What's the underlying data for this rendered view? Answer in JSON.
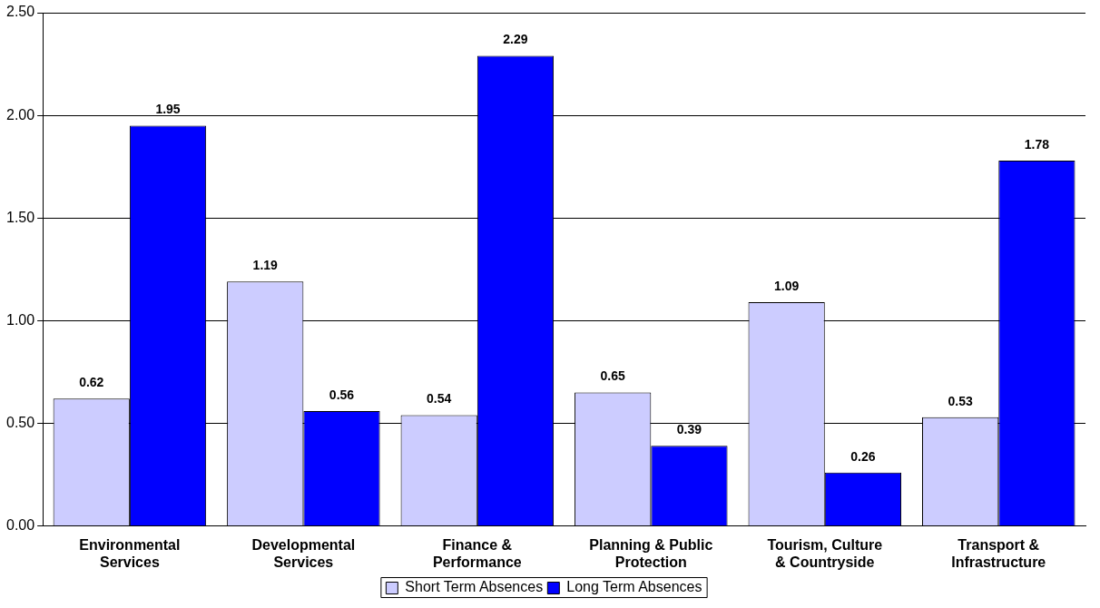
{
  "chart_data": {
    "type": "bar",
    "categories": [
      "Environmental Services",
      "Developmental Services",
      "Finance & Performance",
      "Planning & Public Protection",
      "Tourism, Culture & Countryside",
      "Transport & Infrastructure"
    ],
    "series": [
      {
        "name": "Short Term Absences",
        "color": "#ccccff",
        "values": [
          0.62,
          1.19,
          0.54,
          0.65,
          1.09,
          0.53
        ]
      },
      {
        "name": "Long Term Absences",
        "color": "#0000ff",
        "values": [
          1.95,
          0.56,
          2.29,
          0.39,
          0.26,
          1.78
        ]
      }
    ],
    "ylim": [
      0,
      2.5
    ],
    "yticks": [
      {
        "value": 0,
        "label": "0.00"
      },
      {
        "value": 0.5,
        "label": "0.50"
      },
      {
        "value": 1,
        "label": "1.00"
      },
      {
        "value": 1.5,
        "label": "1.50"
      },
      {
        "value": 2,
        "label": "2.00"
      },
      {
        "value": 2.5,
        "label": "2.50"
      }
    ],
    "grid": "y",
    "legend": "bottom",
    "data_labels": true
  }
}
